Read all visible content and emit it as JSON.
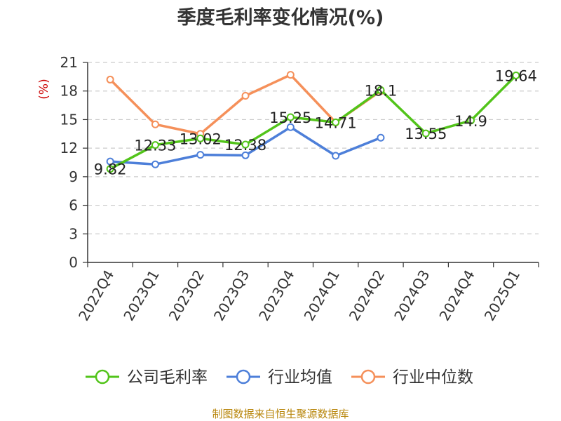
{
  "chart_data": {
    "type": "line",
    "title": "季度毛利率变化情况(%)",
    "unit": "(%)",
    "source": "制图数据来自恒生聚源数据库",
    "categories": [
      "2022Q4",
      "2023Q1",
      "2023Q2",
      "2023Q3",
      "2023Q4",
      "2024Q1",
      "2024Q2",
      "2024Q3",
      "2024Q4",
      "2025Q1"
    ],
    "ylim": [
      0,
      21
    ],
    "yticks": [
      0,
      3,
      6,
      9,
      12,
      15,
      18,
      21
    ],
    "grid": true,
    "legend_position": "bottom",
    "series": [
      {
        "name": "公司毛利率",
        "color": "#52c41a",
        "values": [
          9.82,
          12.33,
          13.02,
          12.38,
          15.25,
          14.71,
          18.1,
          13.55,
          14.9,
          19.64
        ],
        "labels": [
          "9.82",
          "12.33",
          "13.02",
          "12.38",
          "15.25",
          "14.71",
          "18.1",
          "13.55",
          "14.9",
          "19.64"
        ]
      },
      {
        "name": "行业均值",
        "color": "#4d7fd9",
        "values": [
          10.6,
          10.3,
          11.3,
          11.25,
          14.2,
          11.2,
          13.1,
          null,
          null,
          null
        ]
      },
      {
        "name": "行业中位数",
        "color": "#f5905a",
        "values": [
          19.2,
          14.5,
          13.5,
          17.5,
          19.7,
          14.7,
          18.0,
          null,
          null,
          null
        ]
      }
    ]
  }
}
